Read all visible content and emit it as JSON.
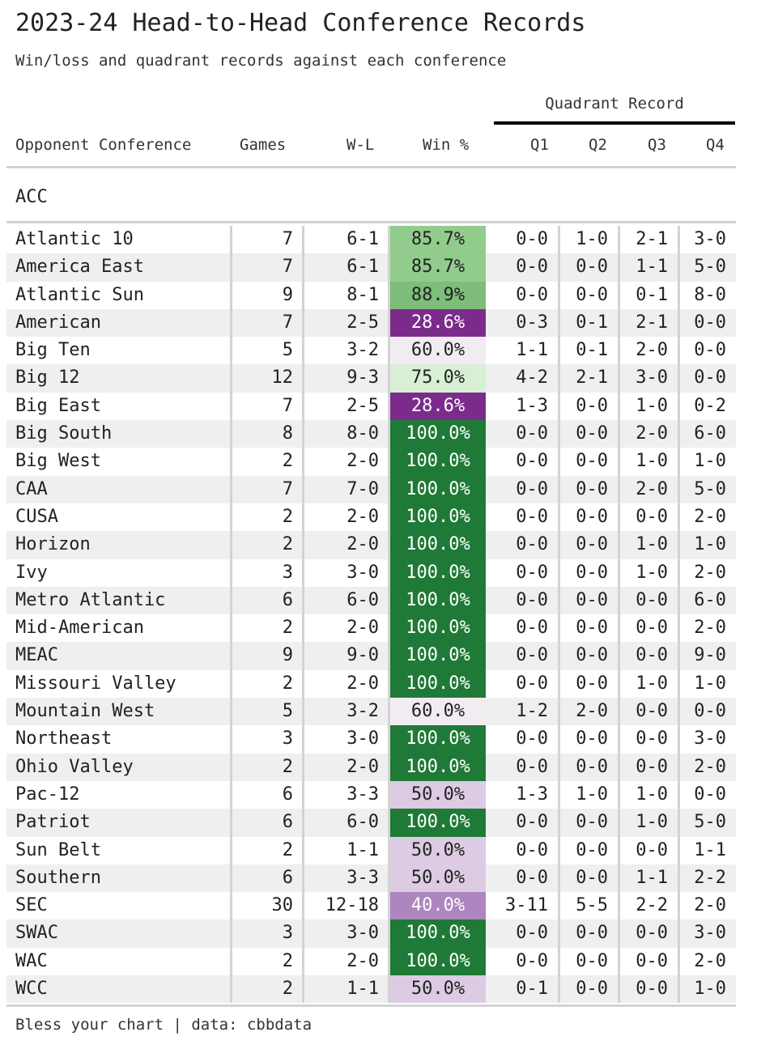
{
  "header": {
    "title": "2023-24 Head-to-Head Conference Records",
    "subtitle": "Win/loss and quadrant records against each conference",
    "spanner": "Quadrant Record"
  },
  "columns": {
    "conference": "Opponent Conference",
    "games": "Games",
    "wl": "W-L",
    "pct": "Win %",
    "q1": "Q1",
    "q2": "Q2",
    "q3": "Q3",
    "q4": "Q4"
  },
  "group": "ACC",
  "rows": [
    {
      "conf": "Atlantic 10",
      "games": "7",
      "wl": "6-1",
      "pct": "85.7%",
      "q1": "0-0",
      "q2": "1-0",
      "q3": "2-1",
      "q4": "3-0",
      "bg": "#92cc8c",
      "fg": "#222222"
    },
    {
      "conf": "America East",
      "games": "7",
      "wl": "6-1",
      "pct": "85.7%",
      "q1": "0-0",
      "q2": "0-0",
      "q3": "1-1",
      "q4": "5-0",
      "bg": "#92cc8c",
      "fg": "#222222"
    },
    {
      "conf": "Atlantic Sun",
      "games": "9",
      "wl": "8-1",
      "pct": "88.9%",
      "q1": "0-0",
      "q2": "0-0",
      "q3": "0-1",
      "q4": "8-0",
      "bg": "#7ebd7a",
      "fg": "#222222"
    },
    {
      "conf": "American",
      "games": "7",
      "wl": "2-5",
      "pct": "28.6%",
      "q1": "0-3",
      "q2": "0-1",
      "q3": "2-1",
      "q4": "0-0",
      "bg": "#7b2c8b",
      "fg": "#ffffff"
    },
    {
      "conf": "Big Ten",
      "games": "5",
      "wl": "3-2",
      "pct": "60.0%",
      "q1": "1-1",
      "q2": "0-1",
      "q3": "2-0",
      "q4": "0-0",
      "bg": "#f1ecf2",
      "fg": "#222222"
    },
    {
      "conf": "Big 12",
      "games": "12",
      "wl": "9-3",
      "pct": "75.0%",
      "q1": "4-2",
      "q2": "2-1",
      "q3": "3-0",
      "q4": "0-0",
      "bg": "#d8efd6",
      "fg": "#222222"
    },
    {
      "conf": "Big East",
      "games": "7",
      "wl": "2-5",
      "pct": "28.6%",
      "q1": "1-3",
      "q2": "0-0",
      "q3": "1-0",
      "q4": "0-2",
      "bg": "#7b2c8b",
      "fg": "#ffffff"
    },
    {
      "conf": "Big South",
      "games": "8",
      "wl": "8-0",
      "pct": "100.0%",
      "q1": "0-0",
      "q2": "0-0",
      "q3": "2-0",
      "q4": "6-0",
      "bg": "#1f7a37",
      "fg": "#ffffff"
    },
    {
      "conf": "Big West",
      "games": "2",
      "wl": "2-0",
      "pct": "100.0%",
      "q1": "0-0",
      "q2": "0-0",
      "q3": "1-0",
      "q4": "1-0",
      "bg": "#1f7a37",
      "fg": "#ffffff"
    },
    {
      "conf": "CAA",
      "games": "7",
      "wl": "7-0",
      "pct": "100.0%",
      "q1": "0-0",
      "q2": "0-0",
      "q3": "2-0",
      "q4": "5-0",
      "bg": "#1f7a37",
      "fg": "#ffffff"
    },
    {
      "conf": "CUSA",
      "games": "2",
      "wl": "2-0",
      "pct": "100.0%",
      "q1": "0-0",
      "q2": "0-0",
      "q3": "0-0",
      "q4": "2-0",
      "bg": "#1f7a37",
      "fg": "#ffffff"
    },
    {
      "conf": "Horizon",
      "games": "2",
      "wl": "2-0",
      "pct": "100.0%",
      "q1": "0-0",
      "q2": "0-0",
      "q3": "1-0",
      "q4": "1-0",
      "bg": "#1f7a37",
      "fg": "#ffffff"
    },
    {
      "conf": "Ivy",
      "games": "3",
      "wl": "3-0",
      "pct": "100.0%",
      "q1": "0-0",
      "q2": "0-0",
      "q3": "1-0",
      "q4": "2-0",
      "bg": "#1f7a37",
      "fg": "#ffffff"
    },
    {
      "conf": "Metro Atlantic",
      "games": "6",
      "wl": "6-0",
      "pct": "100.0%",
      "q1": "0-0",
      "q2": "0-0",
      "q3": "0-0",
      "q4": "6-0",
      "bg": "#1f7a37",
      "fg": "#ffffff"
    },
    {
      "conf": "Mid-American",
      "games": "2",
      "wl": "2-0",
      "pct": "100.0%",
      "q1": "0-0",
      "q2": "0-0",
      "q3": "0-0",
      "q4": "2-0",
      "bg": "#1f7a37",
      "fg": "#ffffff"
    },
    {
      "conf": "MEAC",
      "games": "9",
      "wl": "9-0",
      "pct": "100.0%",
      "q1": "0-0",
      "q2": "0-0",
      "q3": "0-0",
      "q4": "9-0",
      "bg": "#1f7a37",
      "fg": "#ffffff"
    },
    {
      "conf": "Missouri Valley",
      "games": "2",
      "wl": "2-0",
      "pct": "100.0%",
      "q1": "0-0",
      "q2": "0-0",
      "q3": "1-0",
      "q4": "1-0",
      "bg": "#1f7a37",
      "fg": "#ffffff"
    },
    {
      "conf": "Mountain West",
      "games": "5",
      "wl": "3-2",
      "pct": "60.0%",
      "q1": "1-2",
      "q2": "2-0",
      "q3": "0-0",
      "q4": "0-0",
      "bg": "#f1ecf2",
      "fg": "#222222"
    },
    {
      "conf": "Northeast",
      "games": "3",
      "wl": "3-0",
      "pct": "100.0%",
      "q1": "0-0",
      "q2": "0-0",
      "q3": "0-0",
      "q4": "3-0",
      "bg": "#1f7a37",
      "fg": "#ffffff"
    },
    {
      "conf": "Ohio Valley",
      "games": "2",
      "wl": "2-0",
      "pct": "100.0%",
      "q1": "0-0",
      "q2": "0-0",
      "q3": "0-0",
      "q4": "2-0",
      "bg": "#1f7a37",
      "fg": "#ffffff"
    },
    {
      "conf": "Pac-12",
      "games": "6",
      "wl": "3-3",
      "pct": "50.0%",
      "q1": "1-3",
      "q2": "1-0",
      "q3": "1-0",
      "q4": "0-0",
      "bg": "#dccbe3",
      "fg": "#222222"
    },
    {
      "conf": "Patriot",
      "games": "6",
      "wl": "6-0",
      "pct": "100.0%",
      "q1": "0-0",
      "q2": "0-0",
      "q3": "1-0",
      "q4": "5-0",
      "bg": "#1f7a37",
      "fg": "#ffffff"
    },
    {
      "conf": "Sun Belt",
      "games": "2",
      "wl": "1-1",
      "pct": "50.0%",
      "q1": "0-0",
      "q2": "0-0",
      "q3": "0-0",
      "q4": "1-1",
      "bg": "#dccbe3",
      "fg": "#222222"
    },
    {
      "conf": "Southern",
      "games": "6",
      "wl": "3-3",
      "pct": "50.0%",
      "q1": "0-0",
      "q2": "0-0",
      "q3": "1-1",
      "q4": "2-2",
      "bg": "#dccbe3",
      "fg": "#222222"
    },
    {
      "conf": "SEC",
      "games": "30",
      "wl": "12-18",
      "pct": "40.0%",
      "q1": "3-11",
      "q2": "5-5",
      "q3": "2-2",
      "q4": "2-0",
      "bg": "#ad86bf",
      "fg": "#ffffff"
    },
    {
      "conf": "SWAC",
      "games": "3",
      "wl": "3-0",
      "pct": "100.0%",
      "q1": "0-0",
      "q2": "0-0",
      "q3": "0-0",
      "q4": "3-0",
      "bg": "#1f7a37",
      "fg": "#ffffff"
    },
    {
      "conf": "WAC",
      "games": "2",
      "wl": "2-0",
      "pct": "100.0%",
      "q1": "0-0",
      "q2": "0-0",
      "q3": "0-0",
      "q4": "2-0",
      "bg": "#1f7a37",
      "fg": "#ffffff"
    },
    {
      "conf": "WCC",
      "games": "2",
      "wl": "1-1",
      "pct": "50.0%",
      "q1": "0-1",
      "q2": "0-0",
      "q3": "0-0",
      "q4": "1-0",
      "bg": "#dccbe3",
      "fg": "#222222"
    }
  ],
  "source": "Bless your chart | data: cbbdata"
}
